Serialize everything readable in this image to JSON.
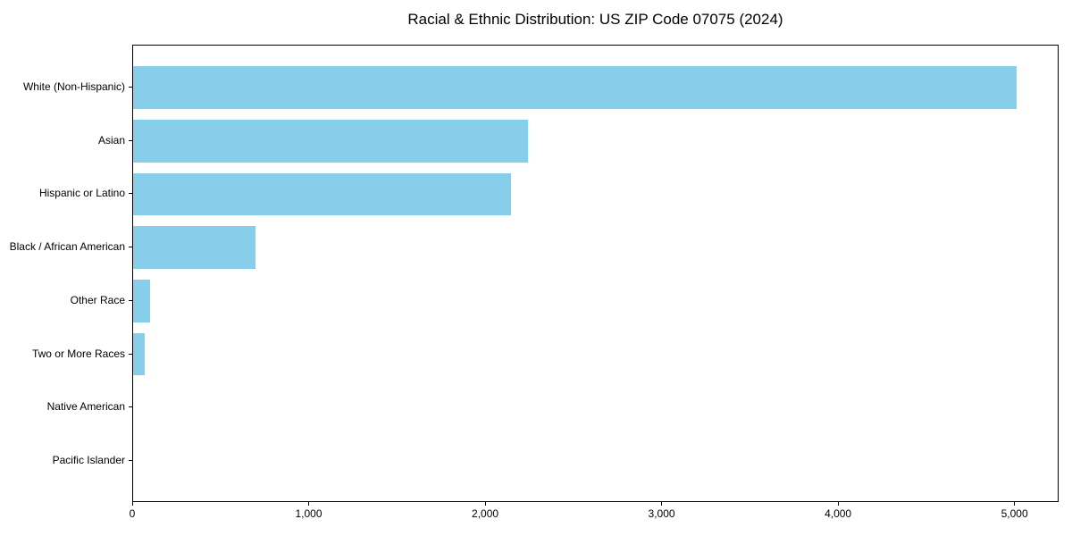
{
  "chart_data": {
    "type": "bar",
    "orientation": "horizontal",
    "title": "Racial & Ethnic Distribution: US ZIP Code 07075 (2024)",
    "categories": [
      "White (Non-Hispanic)",
      "Asian",
      "Hispanic or Latino",
      "Black / African American",
      "Other Race",
      "Two or More Races",
      "Native American",
      "Pacific Islander"
    ],
    "values": [
      5005,
      2240,
      2140,
      695,
      95,
      65,
      0,
      0
    ],
    "xlabel": "",
    "ylabel": "",
    "xlim": [
      0,
      5250
    ],
    "xticks": [
      0,
      1000,
      2000,
      3000,
      4000,
      5000
    ],
    "xtick_labels": [
      "0",
      "1,000",
      "2,000",
      "3,000",
      "4,000",
      "5,000"
    ],
    "bar_color": "#87CEEB",
    "axis_color": "#000000",
    "grid": false,
    "legend": null
  }
}
